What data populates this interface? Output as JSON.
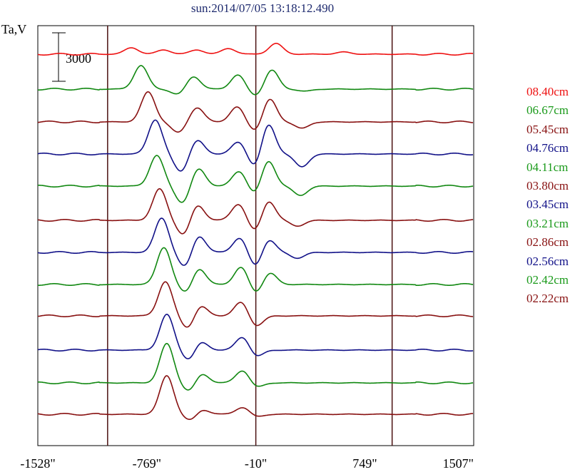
{
  "chart_data": {
    "type": "line",
    "title": "sun:2014/07/05 13:18:12.490",
    "ylabel": "Ta,V",
    "scale_bar_label": "3000",
    "xlim": [
      -1528,
      1507
    ],
    "x_ticks": [
      {
        "value": -1528,
        "label": "-1528\""
      },
      {
        "value": -769,
        "label": "-769\""
      },
      {
        "value": -10,
        "label": "-10\""
      },
      {
        "value": 749,
        "label": "749\""
      },
      {
        "value": 1507,
        "label": "1507\""
      }
    ],
    "vertical_lines": [
      -1042,
      -10,
      939
    ],
    "legend_placement": "right",
    "series": [
      {
        "name": "08.40cm",
        "color": "#ee1111",
        "baseline": 76,
        "peaks": [
          [
            -875,
            -9
          ],
          [
            -650,
            -6
          ],
          [
            -420,
            -6
          ],
          [
            -200,
            -8
          ],
          [
            130,
            -15
          ],
          [
            600,
            -3
          ]
        ]
      },
      {
        "name": "06.67cm",
        "color": "#118811",
        "baseline": 125,
        "peaks": [
          [
            -810,
            -33
          ],
          [
            -445,
            -18
          ],
          [
            -135,
            -20
          ],
          [
            100,
            -27
          ],
          [
            -550,
            8
          ],
          [
            -10,
            10
          ],
          [
            330,
            3
          ]
        ]
      },
      {
        "name": "05.45cm",
        "color": "#881111",
        "baseline": 171,
        "peaks": [
          [
            -760,
            -42
          ],
          [
            -420,
            -20
          ],
          [
            -140,
            -21
          ],
          [
            85,
            -33
          ],
          [
            -550,
            15
          ],
          [
            -10,
            14
          ],
          [
            310,
            9
          ]
        ]
      },
      {
        "name": "04.76cm",
        "color": "#111188",
        "baseline": 216,
        "peaks": [
          [
            -710,
            -48
          ],
          [
            -420,
            -20
          ],
          [
            -130,
            -17
          ],
          [
            75,
            -44
          ],
          [
            -530,
            25
          ],
          [
            -10,
            21
          ],
          [
            310,
            18
          ]
        ]
      },
      {
        "name": "04.11cm",
        "color": "#118811",
        "baseline": 261,
        "peaks": [
          [
            -700,
            -43
          ],
          [
            -410,
            -25
          ],
          [
            -125,
            -21
          ],
          [
            75,
            -37
          ],
          [
            -520,
            24
          ],
          [
            -10,
            14
          ],
          [
            300,
            13
          ]
        ]
      },
      {
        "name": "03.80cm",
        "color": "#881111",
        "baseline": 309,
        "peaks": [
          [
            -680,
            -44
          ],
          [
            -420,
            -23
          ],
          [
            -130,
            -23
          ],
          [
            75,
            -29
          ],
          [
            -510,
            22
          ],
          [
            -10,
            18
          ],
          [
            280,
            8
          ]
        ]
      },
      {
        "name": "03.45cm",
        "color": "#111188",
        "baseline": 354,
        "peaks": [
          [
            -665,
            -48
          ],
          [
            -410,
            -25
          ],
          [
            -120,
            -21
          ],
          [
            75,
            -20
          ],
          [
            -500,
            22
          ],
          [
            -10,
            22
          ],
          [
            280,
            8
          ]
        ]
      },
      {
        "name": "03.21cm",
        "color": "#118811",
        "baseline": 399,
        "peaks": [
          [
            -650,
            -52
          ],
          [
            -410,
            -24
          ],
          [
            -110,
            -25
          ],
          [
            85,
            -17
          ],
          [
            -490,
            14
          ],
          [
            -10,
            14
          ]
        ]
      },
      {
        "name": "02.86cm",
        "color": "#881111",
        "baseline": 443,
        "peaks": [
          [
            -640,
            -48
          ],
          [
            -400,
            -16
          ],
          [
            -110,
            -20
          ],
          [
            -480,
            19
          ],
          [
            -10,
            15
          ]
        ]
      },
      {
        "name": "02.56cm",
        "color": "#111188",
        "baseline": 491,
        "peaks": [
          [
            -630,
            -50
          ],
          [
            -400,
            -14
          ],
          [
            -100,
            -19
          ],
          [
            -470,
            16
          ],
          [
            -10,
            10
          ]
        ]
      },
      {
        "name": "02.42cm",
        "color": "#118811",
        "baseline": 537,
        "peaks": [
          [
            -630,
            -55
          ],
          [
            -390,
            -14
          ],
          [
            -100,
            -18
          ],
          [
            -470,
            13
          ],
          [
            -10,
            7
          ]
        ]
      },
      {
        "name": "02.22cm",
        "color": "#881111",
        "baseline": 581,
        "peaks": [
          [
            -630,
            -54
          ],
          [
            -390,
            -8
          ],
          [
            -100,
            -10
          ],
          [
            -460,
            10
          ],
          [
            -10,
            4
          ]
        ]
      }
    ]
  }
}
